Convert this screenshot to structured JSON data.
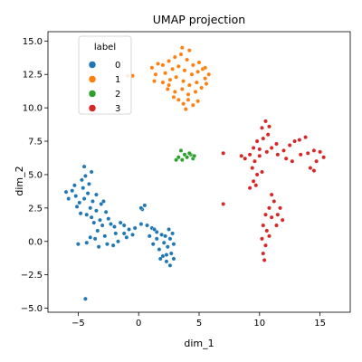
{
  "chart_data": {
    "type": "scatter",
    "title": "UMAP projection",
    "xlabel": "dim_1",
    "ylabel": "dim_2",
    "xlim": [
      -7.5,
      17.5
    ],
    "ylim": [
      -5.3,
      15.7
    ],
    "xticks": [
      -5,
      0,
      5,
      10,
      15
    ],
    "xtick_labels": [
      "−5",
      "0",
      "5",
      "10",
      "15"
    ],
    "yticks": [
      -5.0,
      -2.5,
      0.0,
      2.5,
      5.0,
      7.5,
      10.0,
      12.5,
      15.0
    ],
    "ytick_labels": [
      "−5.0",
      "−2.5",
      "0.0",
      "2.5",
      "5.0",
      "7.5",
      "10.0",
      "12.5",
      "15.0"
    ],
    "grid": false,
    "legend": {
      "title": "label",
      "placement": "top-left",
      "entries": [
        "0",
        "1",
        "2",
        "3"
      ]
    },
    "series": [
      {
        "name": "0",
        "color": "#1f77b4",
        "points": [
          [
            -4.5,
            3.2
          ],
          [
            -4.9,
            2.9
          ],
          [
            -4.2,
            3.6
          ],
          [
            -3.8,
            3.0
          ],
          [
            -5.2,
            3.4
          ],
          [
            -4.0,
            2.5
          ],
          [
            -3.5,
            2.3
          ],
          [
            -4.6,
            4.0
          ],
          [
            -5.5,
            3.8
          ],
          [
            -6.0,
            3.7
          ],
          [
            -5.8,
            3.2
          ],
          [
            -4.3,
            2.0
          ],
          [
            -3.9,
            1.8
          ],
          [
            -3.2,
            1.6
          ],
          [
            -4.5,
            5.6
          ],
          [
            -4.7,
            4.6
          ],
          [
            -4.1,
            4.3
          ],
          [
            -3.5,
            3.5
          ],
          [
            -3.1,
            2.8
          ],
          [
            -2.7,
            2.2
          ],
          [
            -2.5,
            1.7
          ],
          [
            -3.0,
            1.2
          ],
          [
            -3.4,
            0.8
          ],
          [
            -3.6,
            0.2
          ],
          [
            -4.0,
            0.3
          ],
          [
            -4.3,
            -0.1
          ],
          [
            -5.0,
            -0.2
          ],
          [
            -3.3,
            -0.4
          ],
          [
            -2.3,
            1.3
          ],
          [
            -2.0,
            1.1
          ],
          [
            -1.5,
            1.4
          ],
          [
            -1.9,
            0.6
          ],
          [
            -1.2,
            1.2
          ],
          [
            -0.8,
            0.9
          ],
          [
            -0.3,
            1.0
          ],
          [
            -1.7,
            0.0
          ],
          [
            -2.1,
            -0.3
          ],
          [
            -1.0,
            0.3
          ],
          [
            0.2,
            1.3
          ],
          [
            0.7,
            1.2
          ],
          [
            1.1,
            1.0
          ],
          [
            1.5,
            0.7
          ],
          [
            0.3,
            2.4
          ],
          [
            0.5,
            2.7
          ],
          [
            0.2,
            2.5
          ],
          [
            1.5,
            0.2
          ],
          [
            1.2,
            -0.2
          ],
          [
            1.7,
            -0.6
          ],
          [
            2.0,
            -1.1
          ],
          [
            2.3,
            -1.5
          ],
          [
            2.6,
            -1.8
          ],
          [
            1.8,
            -1.3
          ],
          [
            2.2,
            0.4
          ],
          [
            2.5,
            0.9
          ],
          [
            2.8,
            0.6
          ],
          [
            2.4,
            -0.4
          ],
          [
            2.7,
            -0.9
          ],
          [
            2.9,
            -1.3
          ],
          [
            2.1,
            -0.1
          ],
          [
            1.9,
            0.5
          ],
          [
            -2.8,
            0.4
          ],
          [
            -2.6,
            -0.2
          ],
          [
            -4.4,
            -4.3
          ],
          [
            -5.1,
            2.6
          ],
          [
            -4.8,
            2.1
          ],
          [
            -3.7,
            1.4
          ],
          [
            -5.3,
            4.2
          ],
          [
            -4.4,
            4.9
          ],
          [
            -3.9,
            5.2
          ],
          [
            -2.9,
            3.0
          ],
          [
            -1.2,
            0.6
          ],
          [
            -0.5,
            0.5
          ],
          [
            0.9,
            0.4
          ],
          [
            1.3,
            0.9
          ],
          [
            2.6,
            0.2
          ],
          [
            2.9,
            -0.2
          ],
          [
            2.3,
            -1.0
          ]
        ]
      },
      {
        "name": "1",
        "color": "#ff7f0e",
        "points": [
          [
            2.0,
            13.2
          ],
          [
            2.5,
            13.5
          ],
          [
            3.0,
            13.8
          ],
          [
            3.5,
            14.0
          ],
          [
            4.0,
            13.6
          ],
          [
            4.5,
            13.2
          ],
          [
            5.0,
            13.4
          ],
          [
            2.2,
            12.6
          ],
          [
            2.8,
            12.9
          ],
          [
            3.3,
            13.1
          ],
          [
            3.8,
            12.8
          ],
          [
            4.4,
            12.5
          ],
          [
            4.9,
            12.7
          ],
          [
            5.3,
            12.9
          ],
          [
            2.0,
            11.9
          ],
          [
            2.6,
            12.1
          ],
          [
            3.1,
            12.3
          ],
          [
            3.7,
            12.0
          ],
          [
            4.2,
            11.7
          ],
          [
            4.8,
            11.9
          ],
          [
            5.5,
            12.2
          ],
          [
            1.4,
            12.5
          ],
          [
            1.1,
            13.0
          ],
          [
            1.6,
            13.3
          ],
          [
            1.3,
            12.0
          ],
          [
            2.4,
            11.4
          ],
          [
            3.0,
            11.2
          ],
          [
            3.6,
            11.4
          ],
          [
            4.1,
            11.0
          ],
          [
            4.7,
            11.2
          ],
          [
            5.2,
            11.5
          ],
          [
            3.3,
            10.6
          ],
          [
            3.7,
            10.3
          ],
          [
            4.1,
            10.6
          ],
          [
            4.5,
            10.2
          ],
          [
            3.6,
            14.5
          ],
          [
            4.2,
            14.3
          ],
          [
            5.5,
            13.0
          ],
          [
            5.8,
            12.5
          ],
          [
            5.6,
            11.8
          ],
          [
            -0.5,
            12.4
          ],
          [
            -0.9,
            12.4
          ],
          [
            2.9,
            10.8
          ],
          [
            3.9,
            9.9
          ],
          [
            4.9,
            10.5
          ],
          [
            2.5,
            11.7
          ]
        ]
      },
      {
        "name": "2",
        "color": "#2ca02c",
        "points": [
          [
            3.3,
            6.3
          ],
          [
            3.5,
            6.8
          ],
          [
            3.8,
            6.5
          ],
          [
            4.0,
            6.3
          ],
          [
            4.3,
            6.5
          ],
          [
            4.5,
            6.2
          ],
          [
            3.1,
            6.1
          ],
          [
            3.6,
            6.1
          ],
          [
            4.2,
            6.6
          ],
          [
            4.6,
            6.4
          ]
        ]
      },
      {
        "name": "3",
        "color": "#d62728",
        "points": [
          [
            9.5,
            7.0
          ],
          [
            9.8,
            7.5
          ],
          [
            10.3,
            7.7
          ],
          [
            10.7,
            8.0
          ],
          [
            10.2,
            8.5
          ],
          [
            10.5,
            9.0
          ],
          [
            10.8,
            8.6
          ],
          [
            9.2,
            6.5
          ],
          [
            8.8,
            6.2
          ],
          [
            9.6,
            6.0
          ],
          [
            10.0,
            6.4
          ],
          [
            10.6,
            6.7
          ],
          [
            11.0,
            7.0
          ],
          [
            11.4,
            7.3
          ],
          [
            9.4,
            5.5
          ],
          [
            9.8,
            5.0
          ],
          [
            9.5,
            4.5
          ],
          [
            9.2,
            4.0
          ],
          [
            9.7,
            4.2
          ],
          [
            10.2,
            5.2
          ],
          [
            11.5,
            6.5
          ],
          [
            12.0,
            6.8
          ],
          [
            12.5,
            7.2
          ],
          [
            12.9,
            7.5
          ],
          [
            13.3,
            7.6
          ],
          [
            13.8,
            7.8
          ],
          [
            12.2,
            6.2
          ],
          [
            12.7,
            6.0
          ],
          [
            13.4,
            6.5
          ],
          [
            14.0,
            6.6
          ],
          [
            14.5,
            6.8
          ],
          [
            15.0,
            6.7
          ],
          [
            15.3,
            6.3
          ],
          [
            14.7,
            6.0
          ],
          [
            14.2,
            5.5
          ],
          [
            14.5,
            5.3
          ],
          [
            7.0,
            6.6
          ],
          [
            7.0,
            2.8
          ],
          [
            11.0,
            3.5
          ],
          [
            11.2,
            3.0
          ],
          [
            10.8,
            2.5
          ],
          [
            10.5,
            2.0
          ],
          [
            11.0,
            1.8
          ],
          [
            11.5,
            2.0
          ],
          [
            11.9,
            1.6
          ],
          [
            10.3,
            1.2
          ],
          [
            10.6,
            0.8
          ],
          [
            10.2,
            0.2
          ],
          [
            10.5,
            -0.3
          ],
          [
            10.3,
            -0.9
          ],
          [
            10.4,
            -1.4
          ],
          [
            10.8,
            0.4
          ],
          [
            11.4,
            1.2
          ],
          [
            11.7,
            2.5
          ],
          [
            10.0,
            6.9
          ],
          [
            8.5,
            6.4
          ]
        ]
      }
    ]
  }
}
